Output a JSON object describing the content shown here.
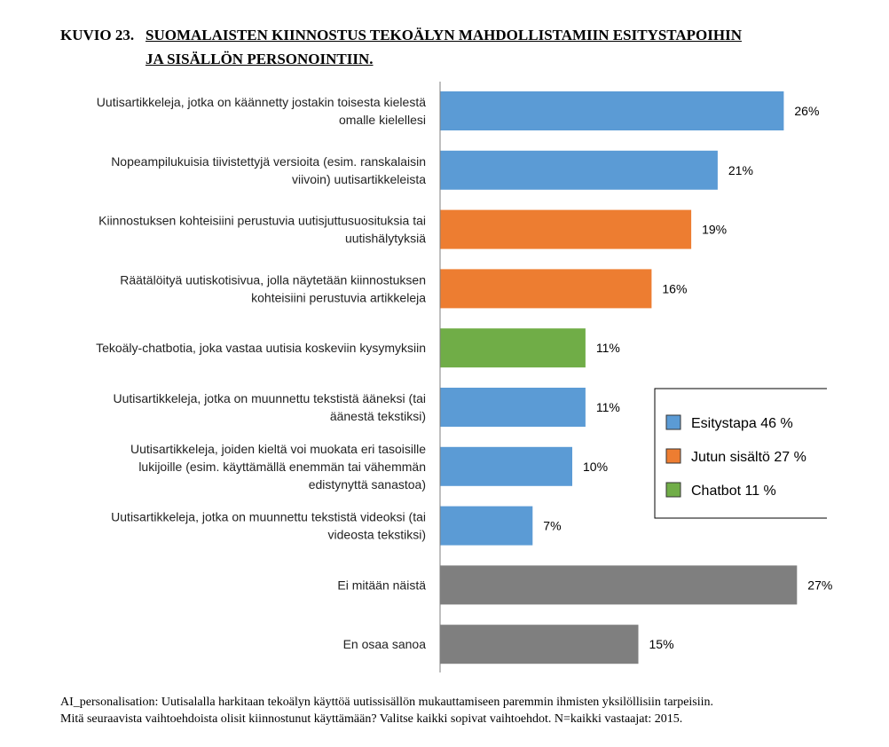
{
  "figure": {
    "prefix": "KUVIO 23.",
    "title_line1": "SUOMALAISTEN KIINNOSTUS TEKOÄLYN MAHDOLLISTAMIIN ESITYSTAPOIHIN",
    "title_line2": "JA SISÄLLÖN PERSONOINTIIN."
  },
  "colors": {
    "Esitystapa": "#5b9bd5",
    "Jutun sisältö": "#ed7d31",
    "Chatbot": "#70ad47",
    "Other": "#7f7f7f",
    "axis": "#7f7f7f"
  },
  "chart_data": {
    "type": "bar",
    "orientation": "horizontal",
    "unit": "%",
    "xlim": [
      0,
      28
    ],
    "categories": [
      [
        "Uutisartikkeleja, jotka on käännetty jostakin toisesta kielestä",
        "omalle kielellesi"
      ],
      [
        "Nopeampilukuisia tiivistettyjä versioita (esim. ranskalaisin",
        "viivoin) uutisartikkeleista"
      ],
      [
        "Kiinnostuksen kohteisiini perustuvia uutisjuttusuosituksia tai",
        "uutishälytyksiä"
      ],
      [
        "Räätälöityä uutiskotisivua, jolla näytetään kiinnostuksen",
        "kohteisiini perustuvia artikkeleja"
      ],
      [
        "Tekoäly-chatbotia, joka vastaa uutisia koskeviin kysymyksiin"
      ],
      [
        "Uutisartikkeleja, jotka on muunnettu tekstistä ääneksi (tai",
        "äänestä tekstiksi)"
      ],
      [
        "Uutisartikkeleja, joiden kieltä voi muokata eri tasoisille",
        "lukijoille (esim. käyttämällä enemmän tai vähemmän",
        "edistynyttä sanastoa)"
      ],
      [
        "Uutisartikkeleja, jotka on muunnettu tekstistä videoksi (tai",
        "videosta tekstiksi)"
      ],
      [
        "Ei mitään näistä"
      ],
      [
        "En osaa sanoa"
      ]
    ],
    "values": [
      26,
      21,
      19,
      16,
      11,
      11,
      10,
      7,
      27,
      15
    ],
    "value_labels": [
      "26%",
      "21%",
      "19%",
      "16%",
      "11%",
      "11%",
      "10%",
      "7%",
      "27%",
      "15%"
    ],
    "groups": [
      "Esitystapa",
      "Esitystapa",
      "Jutun sisältö",
      "Jutun sisältö",
      "Chatbot",
      "Esitystapa",
      "Esitystapa",
      "Esitystapa",
      "Other",
      "Other"
    ],
    "legend": {
      "placement": "right-middle",
      "entries": [
        {
          "group": "Esitystapa",
          "label": "Esitystapa 46 %"
        },
        {
          "group": "Jutun sisältö",
          "label": "Jutun sisältö 27 %"
        },
        {
          "group": "Chatbot",
          "label": "Chatbot 11 %"
        }
      ]
    }
  },
  "note": {
    "line1": "AI_personalisation: Uutisalalla harkitaan tekoälyn käyttöä uutissisällön mukauttamiseen paremmin ihmisten yksilöllisiin tarpeisiin.",
    "line2": "Mitä seuraavista vaihtoehdoista olisit kiinnostunut käyttämään? Valitse kaikki sopivat vaihtoehdot. N=kaikki vastaajat: 2015."
  }
}
